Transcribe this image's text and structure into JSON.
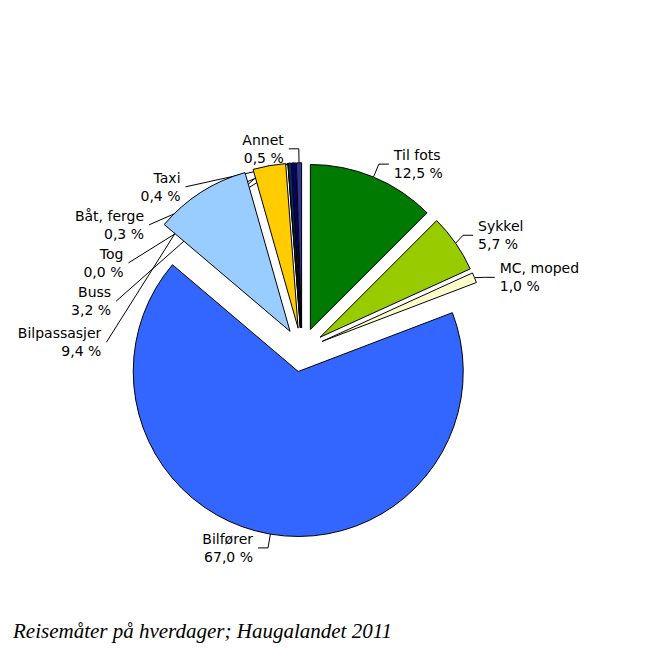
{
  "chart_data": {
    "type": "pie",
    "title": "Reisemåter på hverdager; Haugalandet 2011",
    "categories": [
      "Til fots",
      "Sykkel",
      "MC, moped",
      "Bilfører",
      "Bilpassasjer",
      "Buss",
      "Tog",
      "Båt, ferge",
      "Taxi",
      "Annet"
    ],
    "values": [
      12.5,
      5.7,
      1.0,
      67.0,
      9.4,
      3.2,
      0.0,
      0.3,
      0.4,
      0.5
    ],
    "value_labels": [
      "12,5 %",
      "5,7 %",
      "1,0 %",
      "67,0 %",
      "9,4 %",
      "3,2 %",
      "0,0 %",
      "0,3 %",
      "0,4 %",
      "0,5 %"
    ],
    "colors": [
      "#007a00",
      "#99cc00",
      "#ffffcc",
      "#3366ff",
      "#99ccff",
      "#ffcc00",
      "#ff9900",
      "#003366",
      "#000080",
      "#333399"
    ],
    "data_labels": true
  }
}
